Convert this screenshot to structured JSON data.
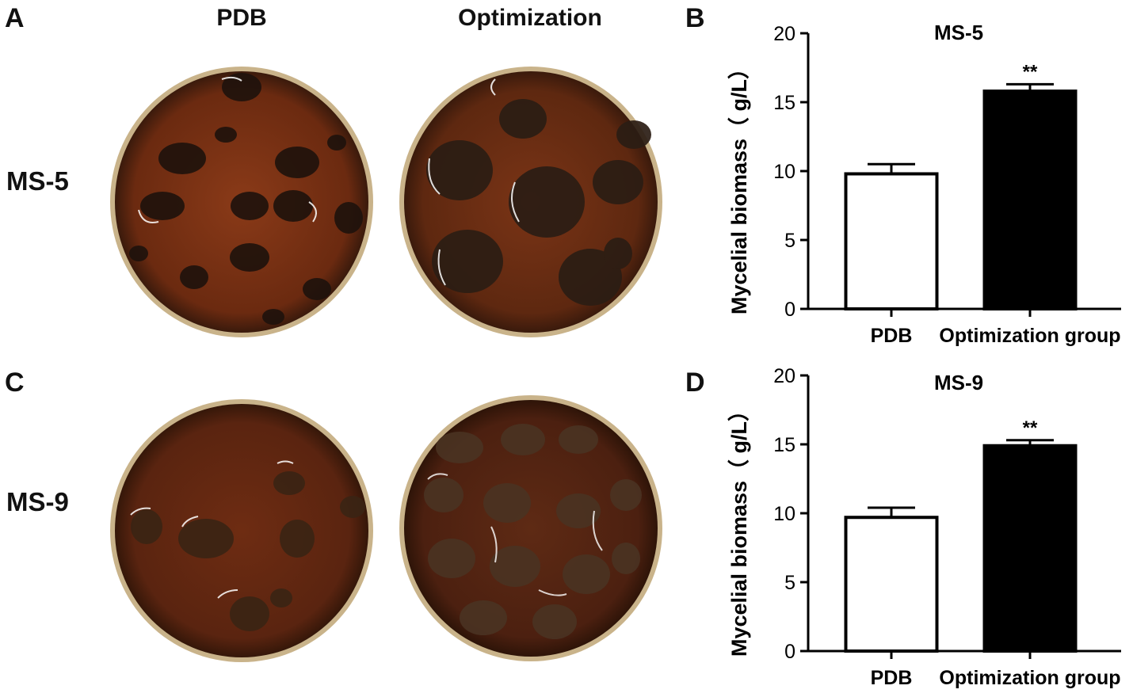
{
  "panels": {
    "A": "A",
    "B": "B",
    "C": "C",
    "D": "D"
  },
  "photo_columns": [
    "PDB",
    "Optimization"
  ],
  "photo_rows": [
    "MS-5",
    "MS-9"
  ],
  "colors": {
    "pdb_bar": "#ffffff",
    "optimization_bar": "#000000",
    "medium": "#6b2a10",
    "mycelium": "#2a1a12"
  },
  "chart_data": [
    {
      "type": "bar",
      "title": "MS-5",
      "ylabel": "Mycelial biomass（ g/L）",
      "categories": [
        "PDB",
        "Optimization group"
      ],
      "values": [
        9.8,
        15.8
      ],
      "errors": [
        0.7,
        0.5
      ],
      "annotations": [
        "",
        "**"
      ],
      "ylim": [
        0,
        20
      ],
      "yticks": [
        0,
        5,
        10,
        15,
        20
      ],
      "bar_colors": [
        "#ffffff",
        "#000000"
      ]
    },
    {
      "type": "bar",
      "title": "MS-9",
      "ylabel": "Mycelial biomass（ g/L）",
      "categories": [
        "PDB",
        "Optimization group"
      ],
      "values": [
        9.7,
        14.9
      ],
      "errors": [
        0.7,
        0.4
      ],
      "annotations": [
        "",
        "**"
      ],
      "ylim": [
        0,
        20
      ],
      "yticks": [
        0,
        5,
        10,
        15,
        20
      ],
      "bar_colors": [
        "#ffffff",
        "#000000"
      ]
    }
  ]
}
